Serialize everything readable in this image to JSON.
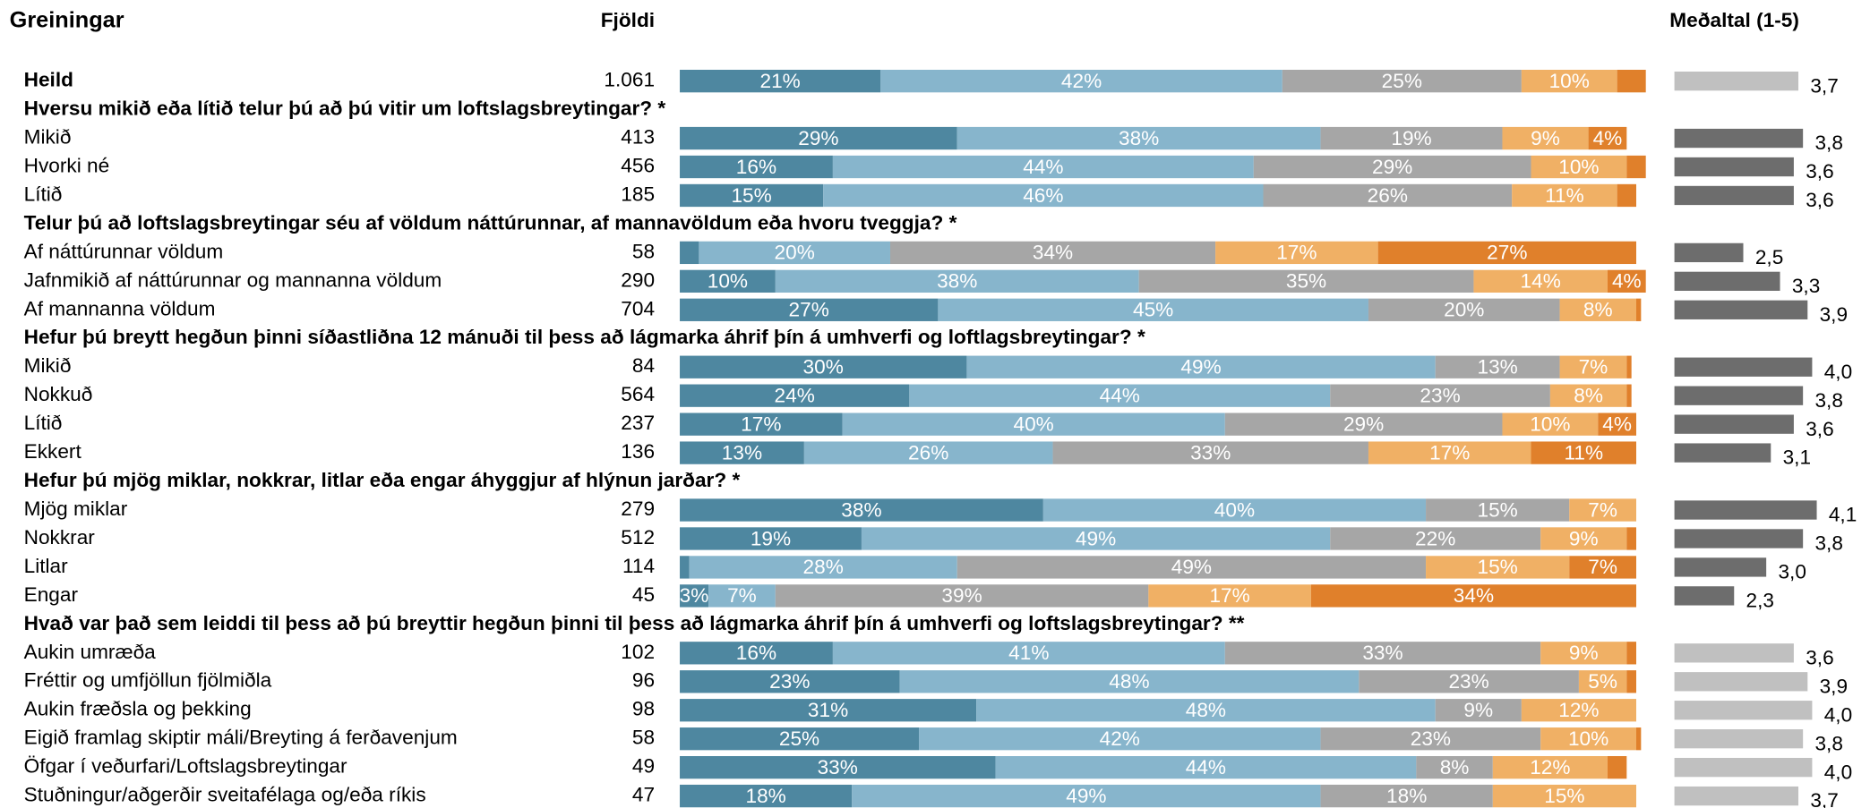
{
  "chart_data": {
    "type": "bar",
    "stacked": true,
    "orientation": "horizontal",
    "headers": {
      "label": "Greiningar",
      "count": "Fjöldi",
      "mean": "Meðaltal (1-5)"
    },
    "xlim": [
      0,
      100
    ],
    "mean_lim": [
      1,
      5
    ],
    "colors": [
      "#4e87a0",
      "#87b5cc",
      "#a6a6a6",
      "#f0b065",
      "#e0802b"
    ],
    "rows": [
      {
        "label": "Heild",
        "bold": true,
        "count": 1061,
        "count_label": "1.061",
        "values": [
          21,
          42,
          25,
          10,
          3
        ],
        "value_labels": [
          "21%",
          "42%",
          "25%",
          "10%",
          null
        ],
        "mean": 3.7,
        "mean_label": "3,7",
        "mean_color": "#c0c0c0"
      },
      {
        "heading": "Hversu mikið eða lítið telur þú að þú vitir um loftslagsbreytingar? *"
      },
      {
        "label": "Mikið",
        "count": 413,
        "values": [
          29,
          38,
          19,
          9,
          4
        ],
        "value_labels": [
          "29%",
          "38%",
          "19%",
          "9%",
          "4%"
        ],
        "mean": 3.8,
        "mean_label": "3,8",
        "mean_color": "#6d6d6d"
      },
      {
        "label": "Hvorki né",
        "count": 456,
        "values": [
          16,
          44,
          29,
          10,
          2
        ],
        "value_labels": [
          "16%",
          "44%",
          "29%",
          "10%",
          null
        ],
        "mean": 3.6,
        "mean_label": "3,6",
        "mean_color": "#6d6d6d"
      },
      {
        "label": "Lítið",
        "count": 185,
        "values": [
          15,
          46,
          26,
          11,
          2
        ],
        "value_labels": [
          "15%",
          "46%",
          "26%",
          "11%",
          null
        ],
        "mean": 3.6,
        "mean_label": "3,6",
        "mean_color": "#6d6d6d"
      },
      {
        "heading": "Telur þú að loftslagsbreytingar séu af völdum náttúrunnar, af mannavöldum eða hvoru tveggja? *"
      },
      {
        "label": "Af náttúrunnar völdum",
        "count": 58,
        "values": [
          2,
          20,
          34,
          17,
          27
        ],
        "value_labels": [
          null,
          "20%",
          "34%",
          "17%",
          "27%"
        ],
        "mean": 2.5,
        "mean_label": "2,5",
        "mean_color": "#6d6d6d"
      },
      {
        "label": "Jafnmikið af náttúrunnar og mannanna völdum",
        "count": 290,
        "values": [
          10,
          38,
          35,
          14,
          4
        ],
        "value_labels": [
          "10%",
          "38%",
          "35%",
          "14%",
          "4%"
        ],
        "mean": 3.3,
        "mean_label": "3,3",
        "mean_color": "#6d6d6d"
      },
      {
        "label": "Af mannanna völdum",
        "count": 704,
        "values": [
          27,
          45,
          20,
          8,
          0.5
        ],
        "value_labels": [
          "27%",
          "45%",
          "20%",
          "8%",
          null
        ],
        "mean": 3.9,
        "mean_label": "3,9",
        "mean_color": "#6d6d6d"
      },
      {
        "heading": "Hefur þú breytt hegðun þinni síðastliðna 12 mánuði til þess að lágmarka áhrif þín á umhverfi og loftlagsbreytingar? *"
      },
      {
        "label": "Mikið",
        "count": 84,
        "values": [
          30,
          49,
          13,
          7,
          0.5
        ],
        "value_labels": [
          "30%",
          "49%",
          "13%",
          "7%",
          null
        ],
        "mean": 4.0,
        "mean_label": "4,0",
        "mean_color": "#6d6d6d"
      },
      {
        "label": "Nokkuð",
        "count": 564,
        "values": [
          24,
          44,
          23,
          8,
          0.5
        ],
        "value_labels": [
          "24%",
          "44%",
          "23%",
          "8%",
          null
        ],
        "mean": 3.8,
        "mean_label": "3,8",
        "mean_color": "#6d6d6d"
      },
      {
        "label": "Lítið",
        "count": 237,
        "values": [
          17,
          40,
          29,
          10,
          4
        ],
        "value_labels": [
          "17%",
          "40%",
          "29%",
          "10%",
          "4%"
        ],
        "mean": 3.6,
        "mean_label": "3,6",
        "mean_color": "#6d6d6d"
      },
      {
        "label": "Ekkert",
        "count": 136,
        "values": [
          13,
          26,
          33,
          17,
          11
        ],
        "value_labels": [
          "13%",
          "26%",
          "33%",
          "17%",
          "11%"
        ],
        "mean": 3.1,
        "mean_label": "3,1",
        "mean_color": "#6d6d6d"
      },
      {
        "heading": "Hefur þú mjög miklar, nokkrar, litlar eða engar áhyggjur af hlýnun jarðar? *"
      },
      {
        "label": "Mjög miklar",
        "count": 279,
        "values": [
          38,
          40,
          15,
          7,
          0
        ],
        "value_labels": [
          "38%",
          "40%",
          "15%",
          "7%",
          null
        ],
        "mean": 4.1,
        "mean_label": "4,1",
        "mean_color": "#6d6d6d"
      },
      {
        "label": "Nokkrar",
        "count": 512,
        "values": [
          19,
          49,
          22,
          9,
          1
        ],
        "value_labels": [
          "19%",
          "49%",
          "22%",
          "9%",
          null
        ],
        "mean": 3.8,
        "mean_label": "3,8",
        "mean_color": "#6d6d6d"
      },
      {
        "label": "Litlar",
        "count": 114,
        "values": [
          1,
          28,
          49,
          15,
          7
        ],
        "value_labels": [
          null,
          "28%",
          "49%",
          "15%",
          "7%"
        ],
        "mean": 3.0,
        "mean_label": "3,0",
        "mean_color": "#6d6d6d"
      },
      {
        "label": "Engar",
        "count": 45,
        "values": [
          3,
          7,
          39,
          17,
          34
        ],
        "value_labels": [
          "3%",
          "7%",
          "39%",
          "17%",
          "34%"
        ],
        "mean": 2.3,
        "mean_label": "2,3",
        "mean_color": "#6d6d6d"
      },
      {
        "heading": "Hvað var það sem leiddi til þess að þú breyttir hegðun þinni til þess að lágmarka áhrif þín á umhverfi og loftslagsbreytingar? **"
      },
      {
        "label": "Aukin umræða",
        "count": 102,
        "values": [
          16,
          41,
          33,
          9,
          1
        ],
        "value_labels": [
          "16%",
          "41%",
          "33%",
          "9%",
          null
        ],
        "mean": 3.6,
        "mean_label": "3,6",
        "mean_color": "#c0c0c0"
      },
      {
        "label": "Fréttir og umfjöllun fjölmiðla",
        "count": 96,
        "values": [
          23,
          48,
          23,
          5,
          1
        ],
        "value_labels": [
          "23%",
          "48%",
          "23%",
          "5%",
          null
        ],
        "mean": 3.9,
        "mean_label": "3,9",
        "mean_color": "#c0c0c0"
      },
      {
        "label": "Aukin fræðsla og þekking",
        "count": 98,
        "values": [
          31,
          48,
          9,
          12,
          0
        ],
        "value_labels": [
          "31%",
          "48%",
          "9%",
          "12%",
          null
        ],
        "mean": 4.0,
        "mean_label": "4,0",
        "mean_color": "#c0c0c0"
      },
      {
        "label": "Eigið framlag skiptir máli/Breyting á ferðavenjum",
        "count": 58,
        "values": [
          25,
          42,
          23,
          10,
          0.5
        ],
        "value_labels": [
          "25%",
          "42%",
          "23%",
          "10%",
          null
        ],
        "mean": 3.8,
        "mean_label": "3,8",
        "mean_color": "#c0c0c0"
      },
      {
        "label": "Öfgar í veðurfari/Loftslagsbreytingar",
        "count": 49,
        "values": [
          33,
          44,
          8,
          12,
          2
        ],
        "value_labels": [
          "33%",
          "44%",
          "8%",
          "12%",
          null
        ],
        "mean": 4.0,
        "mean_label": "4,0",
        "mean_color": "#c0c0c0"
      },
      {
        "label": "Stuðningur/aðgerðir sveitafélaga og/eða ríkis",
        "count": 47,
        "values": [
          18,
          49,
          18,
          15,
          0
        ],
        "value_labels": [
          "18%",
          "49%",
          "18%",
          "15%",
          null
        ],
        "mean": 3.7,
        "mean_label": "3,7",
        "mean_color": "#c0c0c0"
      }
    ]
  }
}
